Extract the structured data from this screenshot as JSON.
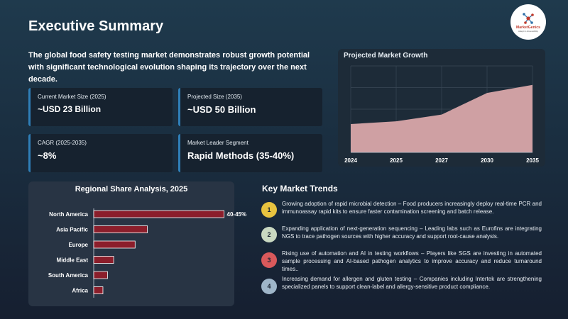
{
  "page": {
    "title": "Executive Summary",
    "intro": "The global food safety testing market demonstrates robust growth potential with significant technological evolution shaping its trajectory over the next decade."
  },
  "logo": {
    "name": "MarketGenics",
    "tagline": "Adept in Accessibility",
    "colors": {
      "red": "#c0392b",
      "blue": "#2e6fa8"
    }
  },
  "cards": [
    {
      "label": "Current Market Size (2025)",
      "value": "~USD 23 Billion"
    },
    {
      "label": "Projected Size (2035)",
      "value": "~USD 50 Billion"
    },
    {
      "label": "CAGR (2025-2035)",
      "value": "~8%"
    },
    {
      "label": "Market Leader Segment",
      "value": "Rapid Methods (35-40%)"
    }
  ],
  "chart_data": [
    {
      "type": "area",
      "title": "Projected Market Growth",
      "categories": [
        "2024",
        "2025",
        "2027",
        "2030",
        "2035"
      ],
      "values": [
        21,
        23,
        28,
        44,
        50
      ],
      "ylim": [
        0,
        64
      ],
      "grid": true,
      "color": "#cfa0a3"
    },
    {
      "type": "bar",
      "orientation": "horizontal",
      "title": "Regional Share Analysis, 2025",
      "categories": [
        "North America",
        "Asia Pacific",
        "Europe",
        "Middle East",
        "South America",
        "Africa"
      ],
      "values": [
        42.5,
        17.5,
        13.5,
        6.5,
        4.5,
        3.0
      ],
      "xlim": [
        0,
        44
      ],
      "labels": [
        "40-45%",
        "",
        "",
        "",
        "",
        ""
      ],
      "color": "#8b1e2b"
    }
  ],
  "trends": {
    "title": "Key Market Trends",
    "items": [
      {
        "num": "1",
        "color": "#e8c33f",
        "text": "Growing adoption of rapid microbial detection – Food producers increasingly deploy real-time PCR and immunoassay rapid kits to ensure faster contamination screening and batch release."
      },
      {
        "num": "2",
        "color": "#c9d8c1",
        "text": "Expanding application of next-generation sequencing – Leading labs such as Eurofins are integrating NGS to trace pathogen sources with higher accuracy and support root-cause analysis."
      },
      {
        "num": "3",
        "color": "#d9595b",
        "text": "Rising use of automation and AI in testing workflows – Players like SGS are investing in automated sample processing and AI-based pathogen analytics to improve accuracy and reduce turnaround times.."
      },
      {
        "num": "4",
        "color": "#9fb6c9",
        "text": "Increasing demand for allergen and gluten testing – Companies including Intertek are strengthening specialized panels to support clean-label and allergy-sensitive product compliance."
      }
    ]
  }
}
